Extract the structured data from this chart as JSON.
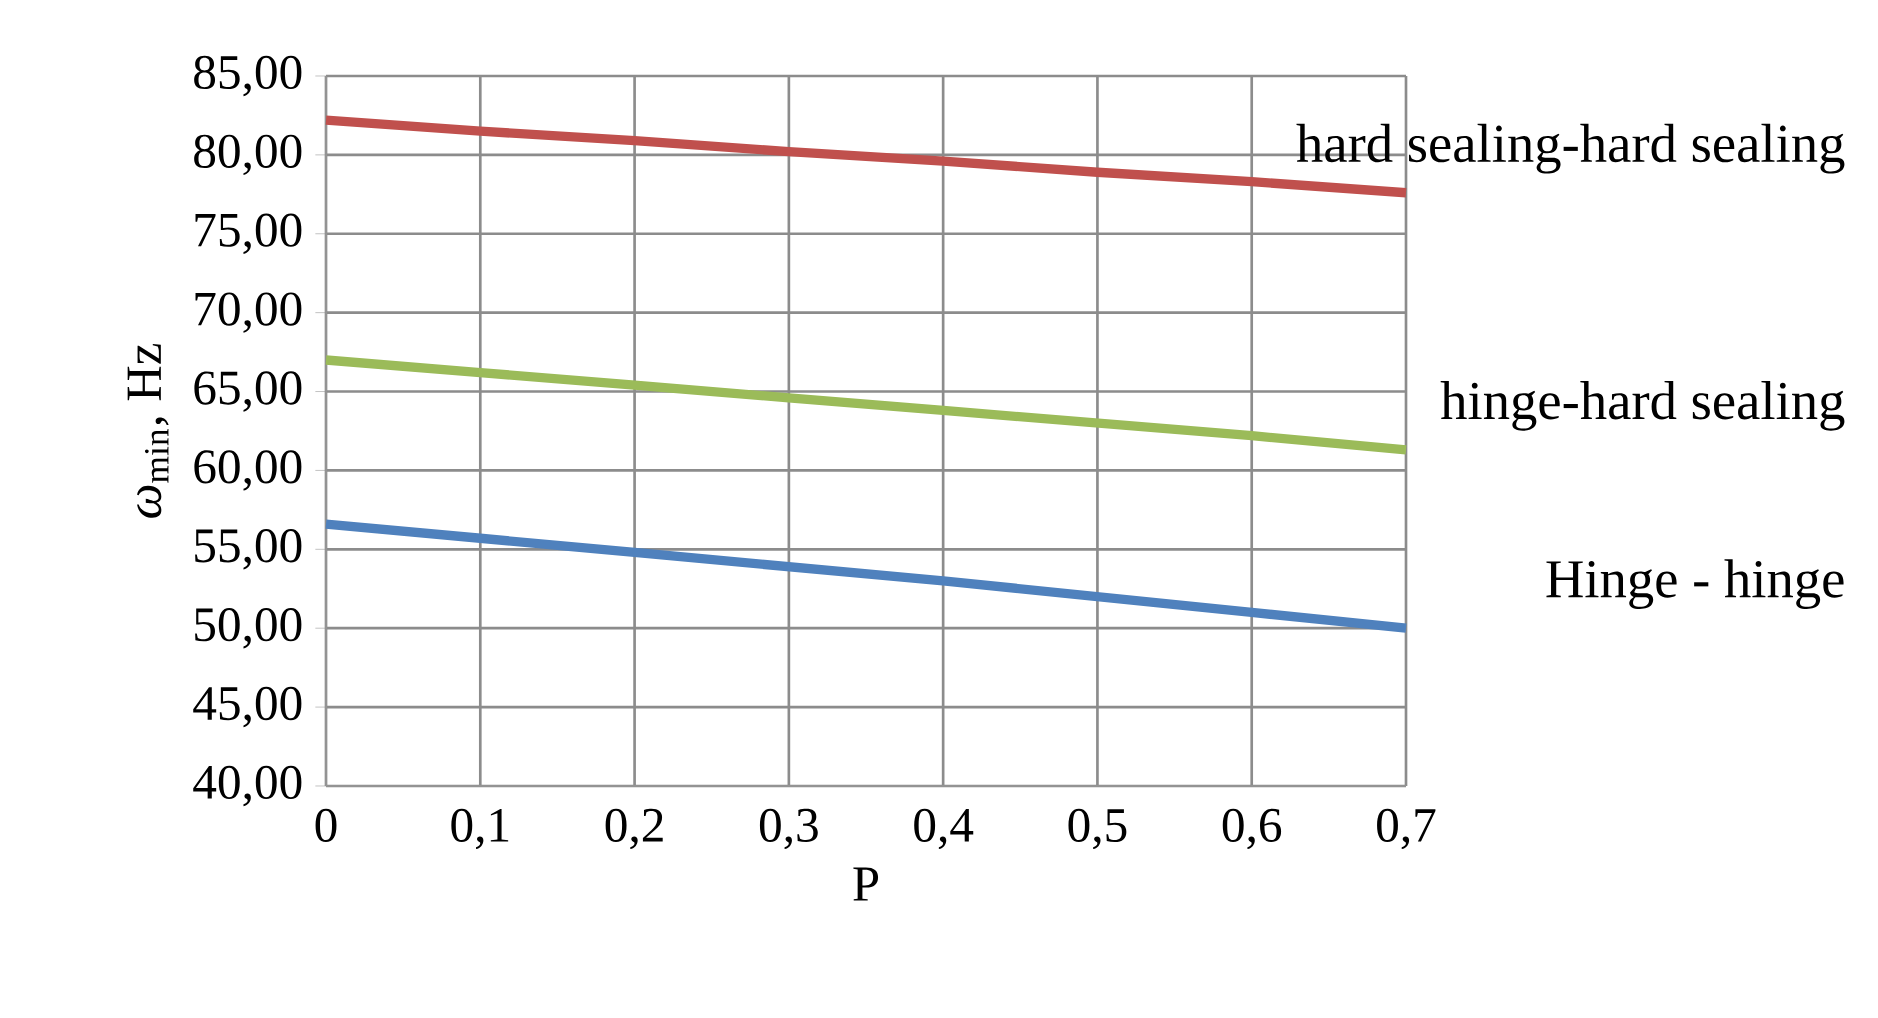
{
  "chart_data": {
    "type": "line",
    "xlabel": "P",
    "ylabel": "*ω*$_{min}$, Hz",
    "x": [
      0,
      0.1,
      0.2,
      0.3,
      0.4,
      0.5,
      0.6,
      0.7
    ],
    "series": [
      {
        "name": "hard sealing-hard sealing",
        "color": "#c0504d",
        "values": [
          82.2,
          81.5,
          80.9,
          80.2,
          79.6,
          78.9,
          78.3,
          77.6
        ]
      },
      {
        "name": "hinge-hard sealing",
        "color": "#9bbb59",
        "values": [
          67.0,
          66.2,
          65.4,
          64.6,
          63.8,
          63.0,
          62.2,
          61.3
        ]
      },
      {
        "name": "Hinge  - hinge",
        "color": "#4f81bd",
        "values": [
          56.6,
          55.7,
          54.8,
          53.9,
          53.0,
          52.0,
          51.0,
          50.0
        ]
      }
    ],
    "xlim": [
      0,
      0.7
    ],
    "xticks": [
      0,
      {
        "value": 0.1,
        "label": "0,1"
      },
      {
        "value": 0.2,
        "label": "0,2"
      },
      {
        "value": 0.3,
        "label": "0,3"
      },
      {
        "value": 0.4,
        "label": "0,4"
      },
      {
        "value": 0.5,
        "label": "0,5"
      },
      {
        "value": 0.6,
        "label": "0,6"
      },
      {
        "value": 0.7,
        "label": "0,7"
      }
    ],
    "ylim": [
      40,
      85
    ],
    "yticks": [
      {
        "value": 40,
        "label": "40,00"
      },
      {
        "value": 45,
        "label": "45,00"
      },
      {
        "value": 50,
        "label": "50,00"
      },
      {
        "value": 55,
        "label": "55,00"
      },
      {
        "value": 60,
        "label": "60,00"
      },
      {
        "value": 65,
        "label": "65,00"
      },
      {
        "value": 70,
        "label": "70,00"
      },
      {
        "value": 75,
        "label": "75,00"
      },
      {
        "value": 80,
        "label": "80,00"
      },
      {
        "value": 85,
        "label": "85,00"
      }
    ],
    "grid": true,
    "legend": false,
    "marker": "none",
    "line_style": "solid"
  }
}
